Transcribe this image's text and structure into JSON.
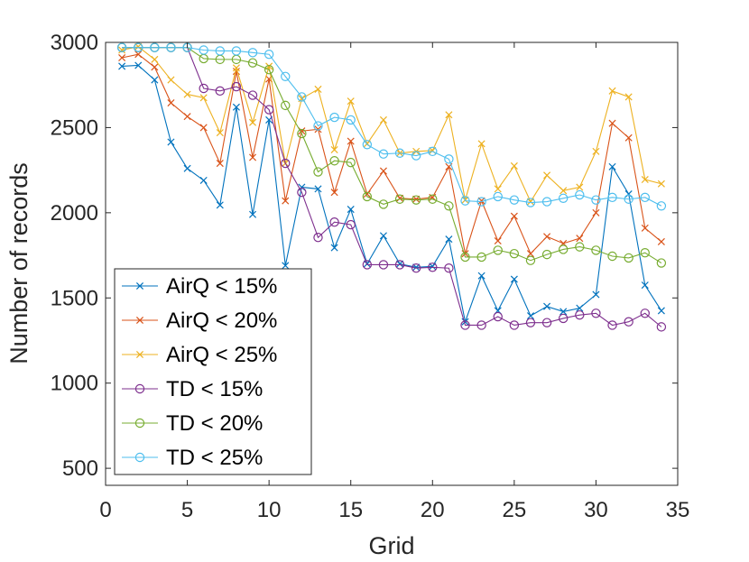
{
  "chart_data": {
    "type": "line",
    "title": "",
    "xlabel": "Grid",
    "ylabel": "Number of records",
    "xlim": [
      0,
      35
    ],
    "ylim": [
      400,
      3000
    ],
    "xticks": [
      0,
      5,
      10,
      15,
      20,
      25,
      30,
      35
    ],
    "yticks": [
      500,
      1000,
      1500,
      2000,
      2500,
      3000
    ],
    "grid": false,
    "legend_position": "bottom-left",
    "x": [
      1,
      2,
      3,
      4,
      5,
      6,
      7,
      8,
      9,
      10,
      11,
      12,
      13,
      14,
      15,
      16,
      17,
      18,
      19,
      20,
      21,
      22,
      23,
      24,
      25,
      26,
      27,
      28,
      29,
      30,
      31,
      32,
      33,
      34
    ],
    "series": [
      {
        "name": "AirQ < 15%",
        "color": "#0072BD",
        "marker": "x",
        "values": [
          2860,
          2865,
          2780,
          2415,
          2260,
          2190,
          2045,
          2620,
          1990,
          2545,
          1690,
          2150,
          2140,
          1795,
          2020,
          1700,
          1865,
          1700,
          1680,
          1685,
          1845,
          1360,
          1630,
          1425,
          1610,
          1395,
          1450,
          1420,
          1440,
          1520,
          2270,
          2110,
          1575,
          1425
        ]
      },
      {
        "name": "AirQ < 20%",
        "color": "#D95319",
        "marker": "x",
        "values": [
          2910,
          2930,
          2855,
          2645,
          2565,
          2500,
          2290,
          2830,
          2325,
          2785,
          2070,
          2480,
          2490,
          2120,
          2420,
          2110,
          2245,
          2085,
          2080,
          2090,
          2270,
          1760,
          2070,
          1835,
          1980,
          1760,
          1860,
          1820,
          1850,
          2000,
          2525,
          2440,
          1910,
          1830
        ]
      },
      {
        "name": "AirQ < 25%",
        "color": "#EDB120",
        "marker": "x",
        "values": [
          2955,
          2975,
          2900,
          2780,
          2695,
          2675,
          2470,
          2850,
          2530,
          2860,
          2290,
          2670,
          2725,
          2370,
          2655,
          2405,
          2545,
          2350,
          2360,
          2365,
          2575,
          2075,
          2405,
          2140,
          2275,
          2065,
          2220,
          2130,
          2150,
          2360,
          2715,
          2680,
          2195,
          2170
        ]
      },
      {
        "name": "TD < 15%",
        "color": "#7E2F8E",
        "marker": "o",
        "values": [
          2970,
          2970,
          2970,
          2970,
          2970,
          2730,
          2715,
          2740,
          2690,
          2605,
          2290,
          2120,
          1855,
          1945,
          1930,
          1695,
          1695,
          1695,
          1675,
          1680,
          1675,
          1340,
          1340,
          1390,
          1340,
          1355,
          1355,
          1380,
          1400,
          1410,
          1340,
          1360,
          1410,
          1330
        ]
      },
      {
        "name": "TD < 20%",
        "color": "#77AC30",
        "marker": "o",
        "values": [
          2970,
          2970,
          2970,
          2970,
          2970,
          2905,
          2900,
          2900,
          2880,
          2840,
          2630,
          2465,
          2240,
          2305,
          2295,
          2095,
          2050,
          2080,
          2075,
          2080,
          2040,
          1740,
          1740,
          1780,
          1760,
          1720,
          1755,
          1785,
          1800,
          1780,
          1745,
          1735,
          1765,
          1705
        ]
      },
      {
        "name": "TD < 25%",
        "color": "#4DBEEE",
        "marker": "o",
        "values": [
          2970,
          2970,
          2970,
          2970,
          2970,
          2955,
          2950,
          2950,
          2940,
          2930,
          2800,
          2680,
          2510,
          2560,
          2545,
          2400,
          2345,
          2350,
          2335,
          2360,
          2315,
          2070,
          2065,
          2095,
          2075,
          2060,
          2065,
          2085,
          2105,
          2075,
          2090,
          2080,
          2090,
          2040
        ]
      }
    ]
  }
}
